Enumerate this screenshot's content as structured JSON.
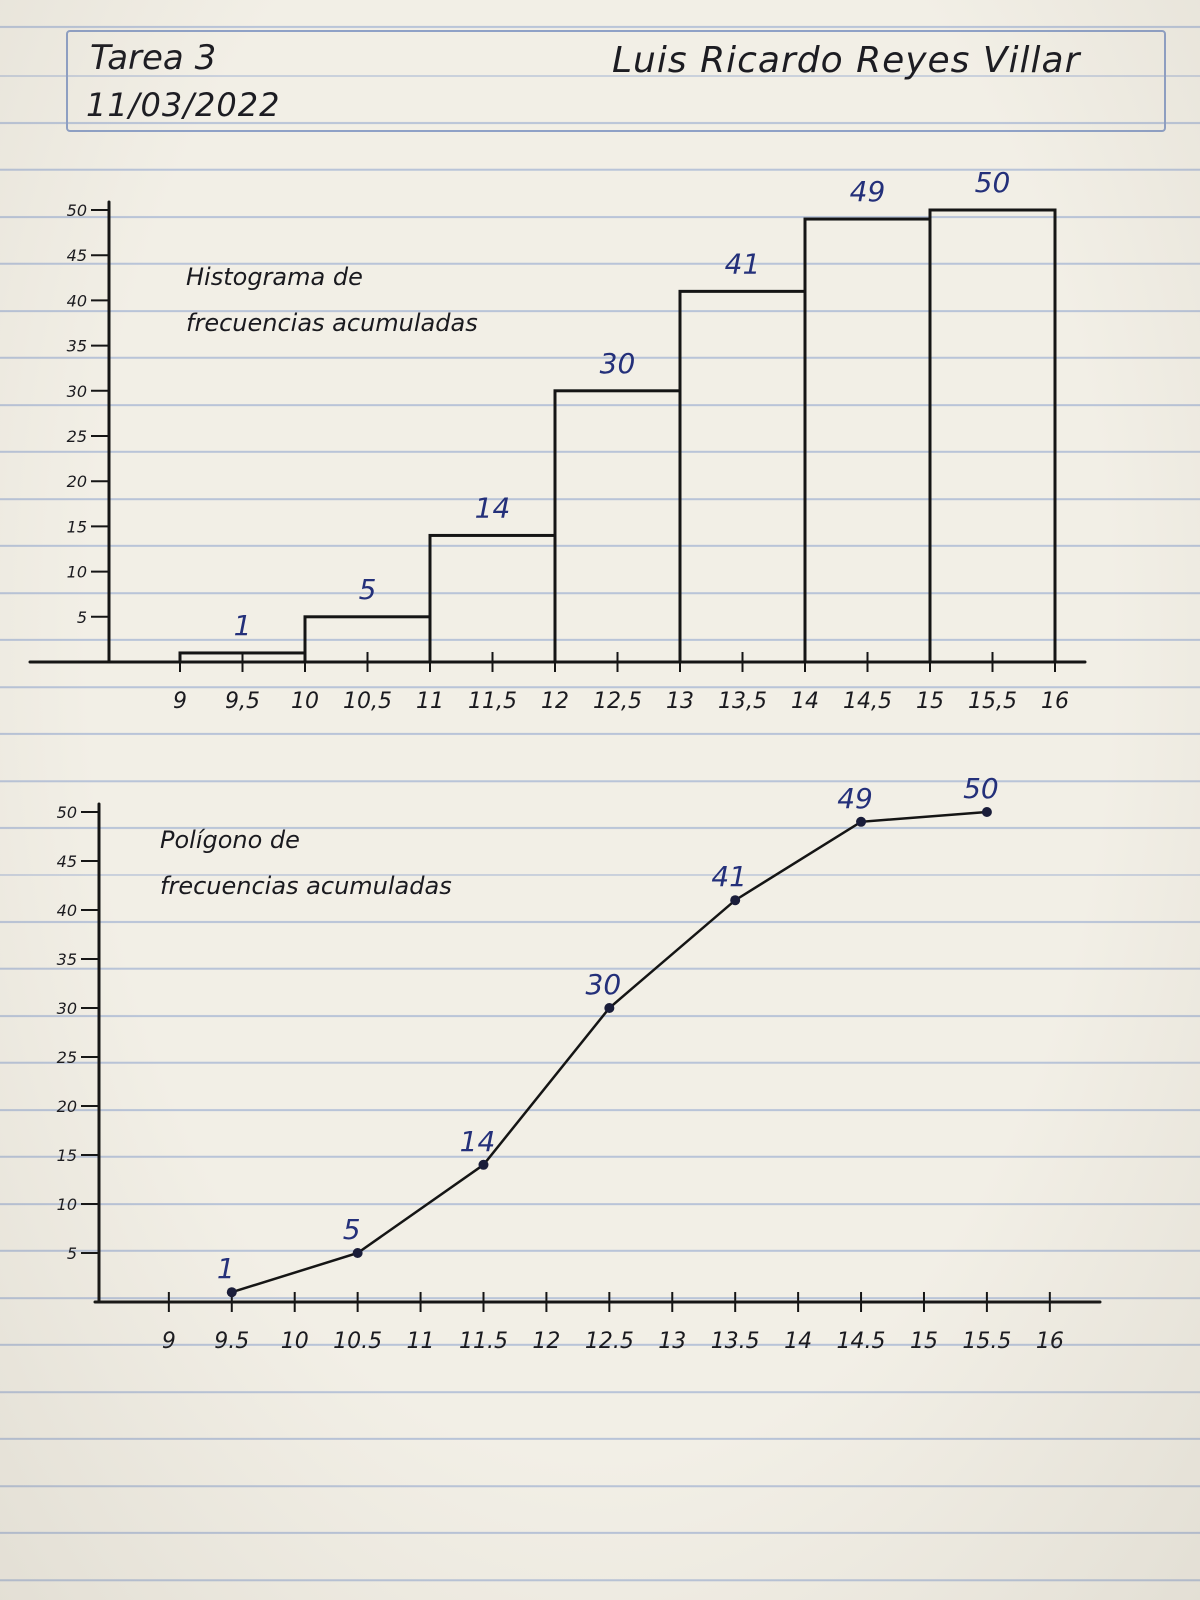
{
  "header": {
    "assignment": "Tarea 3",
    "date": "11/03/2022",
    "student_name": "Luis Ricardo Reyes Villar"
  },
  "colors": {
    "ink": "#151515",
    "blue_ink": "#24307a",
    "rule_lines": "#b9c4d8",
    "paper": "#f2efe6"
  },
  "chart_data": [
    {
      "type": "bar",
      "title_lines": [
        "Histograma de",
        "frecuencias acumuladas"
      ],
      "bins": [
        [
          9,
          10
        ],
        [
          10,
          11
        ],
        [
          11,
          12
        ],
        [
          12,
          13
        ],
        [
          13,
          14
        ],
        [
          14,
          15
        ],
        [
          15,
          16
        ]
      ],
      "values": [
        1,
        5,
        14,
        30,
        41,
        49,
        50
      ],
      "value_labels": [
        "1",
        "5",
        "14",
        "30",
        "41",
        "49",
        "50"
      ],
      "x_ticks": [
        9,
        9.5,
        10,
        10.5,
        11,
        11.5,
        12,
        12.5,
        13,
        13.5,
        14,
        14.5,
        15,
        15.5,
        16
      ],
      "x_tick_labels": [
        "9",
        "9,5",
        "10",
        "10,5",
        "11",
        "11,5",
        "12",
        "12,5",
        "13",
        "13,5",
        "14",
        "14,5",
        "15",
        "15,5",
        "16"
      ],
      "y_ticks": [
        5,
        10,
        15,
        20,
        25,
        30,
        35,
        40,
        45,
        50
      ],
      "y_tick_labels": [
        "5",
        "10",
        "15",
        "20",
        "25",
        "30",
        "35",
        "40",
        "45",
        "50"
      ],
      "xlim": [
        8,
        16.2
      ],
      "ylim": [
        0,
        50
      ],
      "xlabel": "",
      "ylabel": "",
      "grid": false
    },
    {
      "type": "line",
      "title_lines": [
        "Polígono de",
        "frecuencias acumuladas"
      ],
      "x": [
        9.5,
        10.5,
        11.5,
        12.5,
        13.5,
        14.5,
        15.5
      ],
      "values": [
        1,
        5,
        14,
        30,
        41,
        49,
        50
      ],
      "value_labels": [
        "1",
        "5",
        "14",
        "30",
        "41",
        "49",
        "50"
      ],
      "x_ticks": [
        9,
        9.5,
        10,
        10.5,
        11,
        11.5,
        12,
        12.5,
        13,
        13.5,
        14,
        14.5,
        15,
        15.5,
        16
      ],
      "x_tick_labels": [
        "9",
        "9.5",
        "10",
        "10.5",
        "11",
        "11.5",
        "12",
        "12.5",
        "13",
        "13.5",
        "14",
        "14.5",
        "15",
        "15.5",
        "16"
      ],
      "y_ticks": [
        5,
        10,
        15,
        20,
        25,
        30,
        35,
        40,
        45,
        50
      ],
      "y_tick_labels": [
        "5",
        "10",
        "15",
        "20",
        "25",
        "30",
        "35",
        "40",
        "45",
        "50"
      ],
      "xlim": [
        8,
        16.2
      ],
      "ylim": [
        0,
        50
      ],
      "xlabel": "",
      "ylabel": "",
      "grid": false
    }
  ]
}
